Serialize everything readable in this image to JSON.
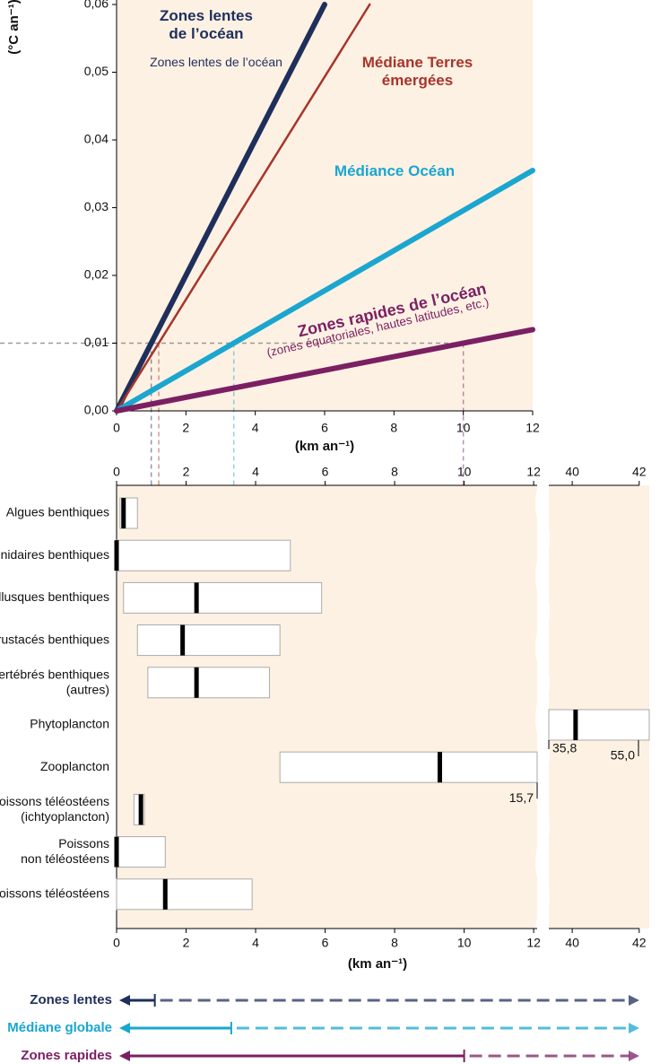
{
  "chart_data": [
    {
      "type": "line",
      "ylabel": "(°C an⁻¹)",
      "xlabel": "(km an⁻¹)",
      "xlim": [
        0,
        12
      ],
      "xticks": [
        0,
        2,
        4,
        6,
        8,
        10,
        12
      ],
      "ylim": [
        0,
        0.06
      ],
      "yticks": [
        {
          "value": 0,
          "label": "0,00"
        },
        {
          "value": 0.01,
          "label": "0,01"
        },
        {
          "value": 0.02,
          "label": "0,02"
        },
        {
          "value": 0.03,
          "label": "0,03"
        },
        {
          "value": 0.04,
          "label": "0,04"
        },
        {
          "value": 0.05,
          "label": "0,05"
        },
        {
          "value": 0.06,
          "label": "0,06"
        }
      ],
      "reference_y": 0.01,
      "series": [
        {
          "name": "Zones lentes de l’océan",
          "color": "#1f2f5c",
          "x": [
            0,
            6
          ],
          "values": [
            0,
            0.06
          ]
        },
        {
          "name": "Médiane Terres émergées",
          "color": "#a8342a",
          "x": [
            0,
            7.3
          ],
          "values": [
            0,
            0.06
          ]
        },
        {
          "name": "Médiance Océan",
          "color": "#1aa6cf",
          "x": [
            0,
            12
          ],
          "values": [
            0,
            0.0355
          ]
        },
        {
          "name": "Zones rapides de l’océan",
          "color": "#7b1f63",
          "x": [
            0,
            12
          ],
          "values": [
            0,
            0.012
          ]
        }
      ],
      "annotations": [
        "Zones lentes de l’océan",
        "(zones équatoriales, hautes latitudes, etc.)"
      ]
    },
    {
      "type": "range",
      "xlabel": "(km an⁻¹)",
      "xlim": [
        0,
        12.1
      ],
      "xticks": [
        0,
        2,
        4,
        6,
        8,
        10,
        12
      ],
      "x2lim": [
        39.3,
        42.3
      ],
      "x2ticks": [
        40,
        42
      ],
      "categories": [
        "Algues benthiques",
        "Cnidaires benthiques",
        "Mollusques benthiques",
        "Crustacés benthiques",
        [
          "Invertébrés benthiques",
          "(autres)"
        ],
        "Phytoplancton",
        "Zooplancton",
        [
          "Poissons téléostéens",
          "(ichtyoplancton)"
        ],
        [
          "Poissons",
          "non téléostéens"
        ],
        "Poissons téléostéens"
      ],
      "low": [
        0.1,
        0,
        0.2,
        0.6,
        0.9,
        35.8,
        4.7,
        0.5,
        0,
        0
      ],
      "median": [
        0.2,
        0,
        2.3,
        1.9,
        2.3,
        40.1,
        9.3,
        0.7,
        0,
        1.4
      ],
      "high": [
        0.6,
        5.0,
        5.9,
        4.7,
        4.4,
        55.0,
        15.7,
        0.8,
        1.4,
        3.9
      ],
      "low_labels": [
        null,
        null,
        null,
        null,
        null,
        "35,8",
        null,
        null,
        null,
        null
      ],
      "high_labels": [
        null,
        null,
        null,
        null,
        null,
        "55,0",
        "15,7",
        null,
        null,
        null
      ],
      "box_color": "#ffffff",
      "median_color": "#000000",
      "arrows": [
        {
          "label": "Zones lentes",
          "x": 1.1,
          "color": "#1f2f5c"
        },
        {
          "label": "Médiane globale",
          "x": 3.3,
          "color": "#1aa6cf"
        },
        {
          "label": "Zones rapides",
          "x": 10,
          "color": "#7b1f63"
        }
      ]
    }
  ]
}
